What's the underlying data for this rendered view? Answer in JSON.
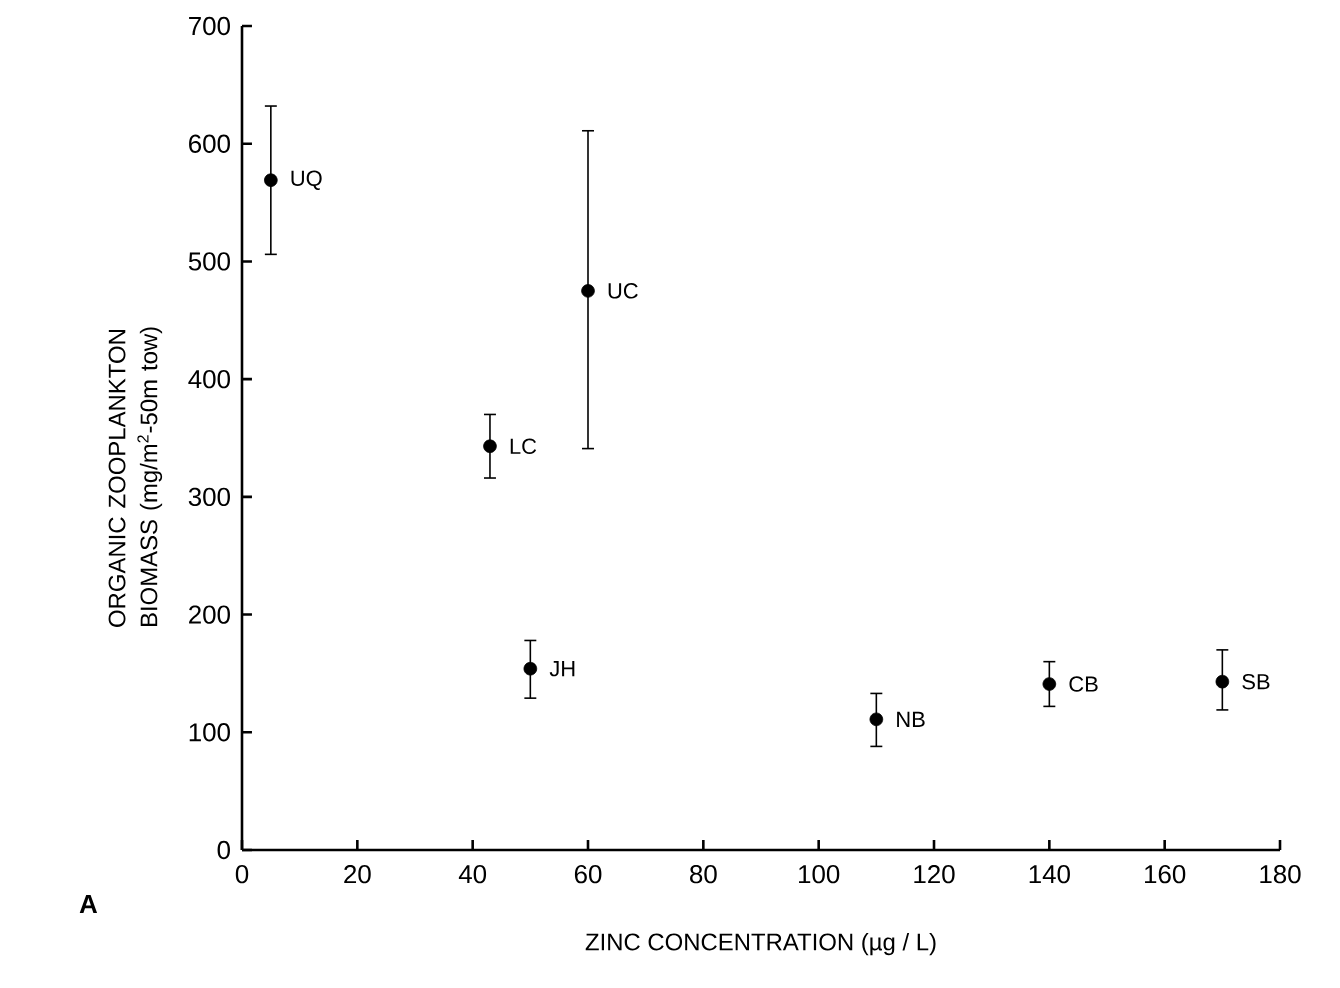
{
  "chart_data": {
    "type": "scatter",
    "xlabel": "ZINC CONCENTRATION (µg / L)",
    "ylabel": "ORGANIC ZOOPLANKTON BIOMASS (mg/m$^{2}$-50m tow)",
    "x": [
      5,
      43,
      60,
      50,
      110,
      140,
      170
    ],
    "series": [
      {
        "color": "#000000",
        "values": [
          569,
          343,
          475,
          154,
          111,
          141,
          143
        ],
        "errors": [
          [
            506,
            632
          ],
          [
            316,
            370
          ],
          [
            341,
            611
          ],
          [
            129,
            178
          ],
          [
            88,
            133
          ],
          [
            122,
            160
          ],
          [
            119,
            170
          ]
        ]
      }
    ],
    "xlim": [
      0,
      180
    ],
    "xticks": [
      0,
      20,
      40,
      60,
      80,
      100,
      120,
      140,
      160,
      180
    ],
    "ylim": [
      0,
      700
    ],
    "yticks": [
      0,
      100,
      200,
      300,
      400,
      500,
      600,
      700
    ],
    "marker": "circle",
    "grid": false,
    "legend": false,
    "annotations": [
      {
        "text": "UQ",
        "x": 5,
        "y": 569
      },
      {
        "text": "LC",
        "x": 43,
        "y": 343
      },
      {
        "text": "UC",
        "x": 60,
        "y": 475
      },
      {
        "text": "JH",
        "x": 50,
        "y": 154
      },
      {
        "text": "NB",
        "x": 110,
        "y": 111
      },
      {
        "text": "CB",
        "x": 140,
        "y": 141
      },
      {
        "text": "SB",
        "x": 170,
        "y": 143
      },
      "A"
    ]
  }
}
